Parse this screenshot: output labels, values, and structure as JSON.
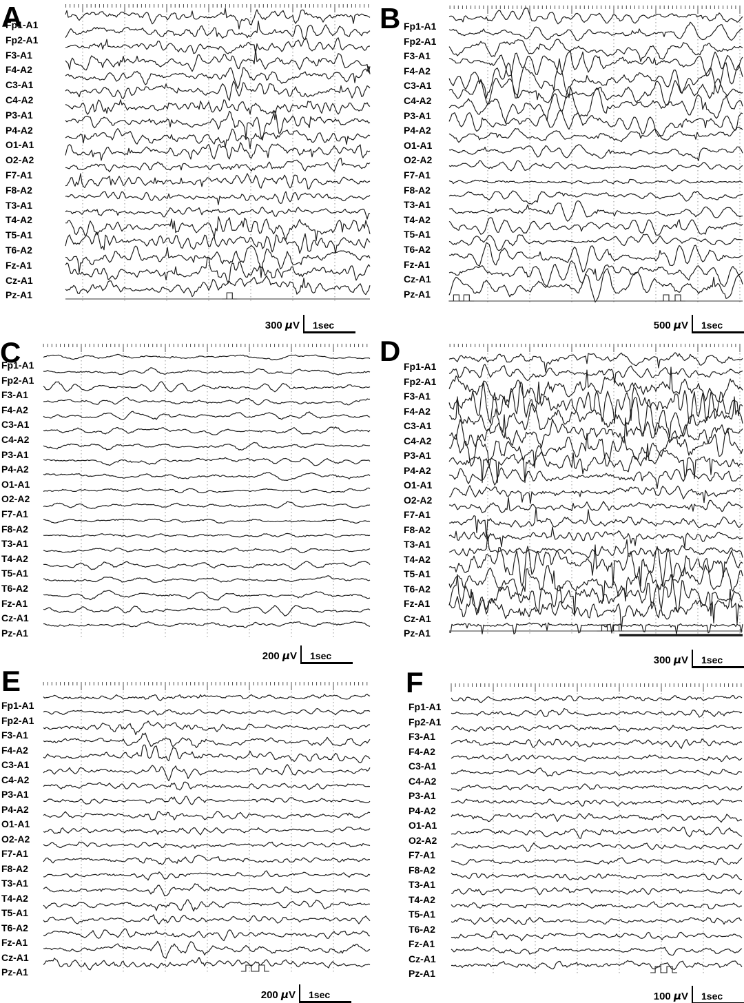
{
  "colors": {
    "background": "#ffffff",
    "trace": "#1d1d1d",
    "grid": "#8f8f8f",
    "tick": "#3a3a3a",
    "text": "#000000"
  },
  "channels": [
    "Fp1-A1",
    "Fp2-A1",
    "F3-A1",
    "F4-A2",
    "C3-A1",
    "C4-A2",
    "P3-A1",
    "P4-A2",
    "O1-A1",
    "O2-A2",
    "F7-A1",
    "F8-A2",
    "T3-A1",
    "T4-A2",
    "T5-A1",
    "T6-A2",
    "Fz-A1",
    "Cz-A1",
    "Pz-A1"
  ],
  "chart_data": {
    "type": "line",
    "kind": "multichannel EEG recording, six panels",
    "x_axis": {
      "major_tick_interval_s": 1,
      "minor_ticks_per_major": 10,
      "visible_seconds": 7.3,
      "gridlines": "vertical dashed, 1 s apart"
    },
    "panels": [
      {
        "letter": "A",
        "calibration_value": "300",
        "calibration_unit": "µV",
        "time_label": "1sec",
        "activity": "moderate-amplitude irregular theta/delta with sharp transients, maximal posterior and midline",
        "amps": [
          8,
          8,
          8,
          8,
          8,
          8,
          9,
          9,
          8,
          8,
          7,
          7,
          5,
          5,
          11,
          10,
          10,
          10,
          10
        ],
        "freq": 3.2,
        "smooth": 0.85,
        "spiky": 0.55,
        "jitter": 0.8,
        "bursts": [
          [
            0.5,
            0.8,
            1.45
          ]
        ],
        "seed": 101,
        "marker": {
          "line": true,
          "pulses": [
            0.53
          ]
        }
      },
      {
        "letter": "B",
        "calibration_value": "500",
        "calibration_unit": "µV",
        "time_label": "1sec",
        "activity": "high-amplitude rhythmic delta slowing, frontal-central-midline maximal, F8-A2 attenuated",
        "amps": [
          9,
          8,
          15,
          14,
          16,
          16,
          16,
          15,
          9,
          8,
          5,
          2.5,
          7,
          7,
          8,
          8,
          14,
          16,
          17
        ],
        "freq": 1.9,
        "smooth": 0.93,
        "spiky": 0.25,
        "jitter": 0.8,
        "bursts": [
          [
            0.1,
            0.95,
            1.2
          ]
        ],
        "seed": 202,
        "marker": {
          "line": true,
          "pulses": [
            0.015,
            0.05,
            0.73,
            0.77
          ]
        }
      },
      {
        "letter": "C",
        "calibration_value": "200",
        "calibration_unit": "µV",
        "time_label": "1sec",
        "activity": "low-amplitude diffuse slow background",
        "amps": [
          4,
          4,
          6,
          6,
          5,
          6,
          5,
          5,
          5,
          4,
          3,
          3,
          3.5,
          4,
          6,
          5,
          5,
          5,
          5
        ],
        "freq": 1.4,
        "smooth": 0.9,
        "spiky": 0.08,
        "jitter": 0.6,
        "bursts": [],
        "seed": 303,
        "marker": {
          "line": false,
          "pulses": []
        }
      },
      {
        "letter": "D",
        "calibration_value": "300",
        "calibration_unit": "µV",
        "time_label": "1sec",
        "activity": "high-amplitude polyspike-and-wave bursts, fronto-central and temporal; Pz-A1 shows rhythmic ECG-like deflections",
        "amps": [
          6,
          6,
          15,
          15,
          14,
          13,
          12,
          10,
          6,
          5,
          5,
          7,
          5,
          6,
          13,
          13,
          15,
          14,
          1.5
        ],
        "freq": 3.0,
        "smooth": 0.82,
        "spiky": 1.0,
        "jitter": 0.9,
        "bursts": [
          [
            0.02,
            0.38,
            1.4
          ],
          [
            0.52,
            0.97,
            1.3
          ]
        ],
        "seed": 404,
        "ecg_channel": 18,
        "marker": {
          "line": true,
          "pulses": [
            0.52,
            0.56
          ],
          "bar": [
            0.58,
            1.0
          ]
        }
      },
      {
        "letter": "E",
        "calibration_value": "200",
        "calibration_unit": "µV",
        "time_label": "1sec",
        "activity": "low-amplitude background with brief frontal accentuation",
        "amps": [
          3.5,
          3,
          5,
          5,
          5,
          4,
          4,
          3,
          4,
          3.5,
          3,
          3.5,
          3,
          3.5,
          4,
          3.5,
          4,
          5,
          5
        ],
        "freq": 2.6,
        "smooth": 0.8,
        "spiky": 0.3,
        "jitter": 0.6,
        "bursts": [
          [
            0.3,
            0.5,
            1.5
          ]
        ],
        "seed": 505,
        "marker": {
          "line": false,
          "pulses": [
            0.62,
            0.66
          ]
        }
      },
      {
        "letter": "F",
        "calibration_value": "100",
        "calibration_unit": "µV",
        "time_label": "1sec",
        "activity": "low-amplitude fast background, fairly uniform across leads",
        "amps": [
          3.5,
          3.5,
          4,
          4,
          3.5,
          3.5,
          3.5,
          3.5,
          4.5,
          4.5,
          3.5,
          3.5,
          3.5,
          3.5,
          3.5,
          3.5,
          3.5,
          3.5,
          4.5
        ],
        "freq": 3.0,
        "smooth": 0.75,
        "spiky": 0.18,
        "jitter": 0.7,
        "bursts": [],
        "seed": 606,
        "marker": {
          "line": false,
          "pulses": [
            0.7,
            0.74
          ]
        }
      }
    ]
  }
}
